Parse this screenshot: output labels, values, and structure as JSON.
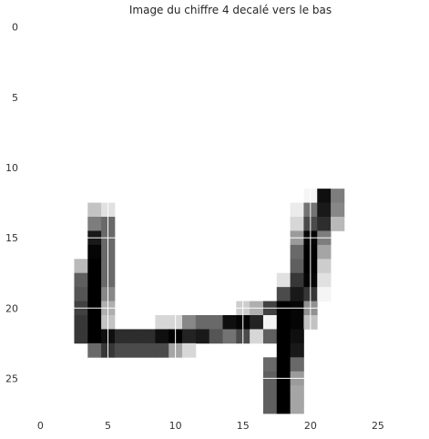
{
  "chart_data": {
    "type": "heatmap",
    "title": "Image du chiffre 4 decalé vers le bas",
    "xlabel": "",
    "ylabel": "",
    "colormap": "gray_r",
    "vmin": 0,
    "vmax": 255,
    "xlim": [
      -0.5,
      27.5
    ],
    "ylim": [
      27.5,
      -0.5
    ],
    "grid": true,
    "grid_color": "#ffffff",
    "xticks": [
      0,
      5,
      10,
      15,
      20,
      25
    ],
    "yticks": [
      0,
      5,
      10,
      15,
      20,
      25
    ],
    "rows": 28,
    "cols": 28,
    "pixels": [
      [
        12,
        20,
        10
      ],
      [
        12,
        21,
        240
      ],
      [
        12,
        22,
        130
      ],
      [
        13,
        4,
        60
      ],
      [
        13,
        5,
        30
      ],
      [
        13,
        19,
        20
      ],
      [
        13,
        20,
        140
      ],
      [
        13,
        21,
        230
      ],
      [
        13,
        22,
        120
      ],
      [
        14,
        4,
        130
      ],
      [
        14,
        5,
        150
      ],
      [
        14,
        19,
        40
      ],
      [
        14,
        20,
        180
      ],
      [
        14,
        21,
        210
      ],
      [
        14,
        22,
        70
      ],
      [
        15,
        4,
        230
      ],
      [
        15,
        5,
        150
      ],
      [
        15,
        19,
        100
      ],
      [
        15,
        20,
        250
      ],
      [
        15,
        21,
        130
      ],
      [
        16,
        4,
        250
      ],
      [
        16,
        5,
        150
      ],
      [
        16,
        19,
        150
      ],
      [
        16,
        20,
        255
      ],
      [
        16,
        21,
        90
      ],
      [
        17,
        3,
        70
      ],
      [
        17,
        4,
        255
      ],
      [
        17,
        5,
        150
      ],
      [
        17,
        19,
        160
      ],
      [
        17,
        20,
        255
      ],
      [
        17,
        21,
        50
      ],
      [
        18,
        3,
        160
      ],
      [
        18,
        4,
        255
      ],
      [
        18,
        5,
        150
      ],
      [
        18,
        18,
        30
      ],
      [
        18,
        19,
        200
      ],
      [
        18,
        20,
        250
      ],
      [
        18,
        21,
        30
      ],
      [
        19,
        3,
        170
      ],
      [
        19,
        4,
        255
      ],
      [
        19,
        5,
        120
      ],
      [
        19,
        18,
        180
      ],
      [
        19,
        19,
        230
      ],
      [
        19,
        20,
        200
      ],
      [
        19,
        21,
        10
      ],
      [
        20,
        3,
        190
      ],
      [
        20,
        4,
        255
      ],
      [
        20,
        5,
        80
      ],
      [
        20,
        15,
        50
      ],
      [
        20,
        16,
        80
      ],
      [
        20,
        17,
        190
      ],
      [
        20,
        18,
        255
      ],
      [
        20,
        19,
        250
      ],
      [
        20,
        20,
        110
      ],
      [
        21,
        3,
        200
      ],
      [
        21,
        4,
        255
      ],
      [
        21,
        5,
        60
      ],
      [
        21,
        9,
        40
      ],
      [
        21,
        10,
        40
      ],
      [
        21,
        11,
        120
      ],
      [
        21,
        12,
        150
      ],
      [
        21,
        13,
        150
      ],
      [
        21,
        14,
        240
      ],
      [
        21,
        15,
        250
      ],
      [
        21,
        16,
        220
      ],
      [
        21,
        17,
        10
      ],
      [
        21,
        18,
        255
      ],
      [
        21,
        19,
        250
      ],
      [
        21,
        20,
        60
      ],
      [
        22,
        3,
        200
      ],
      [
        22,
        4,
        255
      ],
      [
        22,
        5,
        240
      ],
      [
        22,
        6,
        210
      ],
      [
        22,
        7,
        210
      ],
      [
        22,
        8,
        210
      ],
      [
        22,
        9,
        240
      ],
      [
        22,
        10,
        255
      ],
      [
        22,
        11,
        220
      ],
      [
        22,
        12,
        230
      ],
      [
        22,
        13,
        170
      ],
      [
        22,
        14,
        140
      ],
      [
        22,
        15,
        180
      ],
      [
        22,
        16,
        40
      ],
      [
        22,
        17,
        160
      ],
      [
        22,
        18,
        255
      ],
      [
        22,
        19,
        240
      ],
      [
        23,
        4,
        150
      ],
      [
        23,
        5,
        200
      ],
      [
        23,
        6,
        180
      ],
      [
        23,
        7,
        180
      ],
      [
        23,
        8,
        180
      ],
      [
        23,
        9,
        180
      ],
      [
        23,
        10,
        90
      ],
      [
        23,
        11,
        40
      ],
      [
        23,
        18,
        255
      ],
      [
        23,
        19,
        230
      ],
      [
        24,
        17,
        150
      ],
      [
        24,
        18,
        255
      ],
      [
        24,
        19,
        150
      ],
      [
        25,
        17,
        160
      ],
      [
        25,
        18,
        255
      ],
      [
        25,
        19,
        100
      ],
      [
        26,
        17,
        160
      ],
      [
        26,
        18,
        255
      ],
      [
        26,
        19,
        90
      ],
      [
        27,
        17,
        160
      ],
      [
        27,
        18,
        255
      ],
      [
        27,
        19,
        90
      ]
    ]
  }
}
